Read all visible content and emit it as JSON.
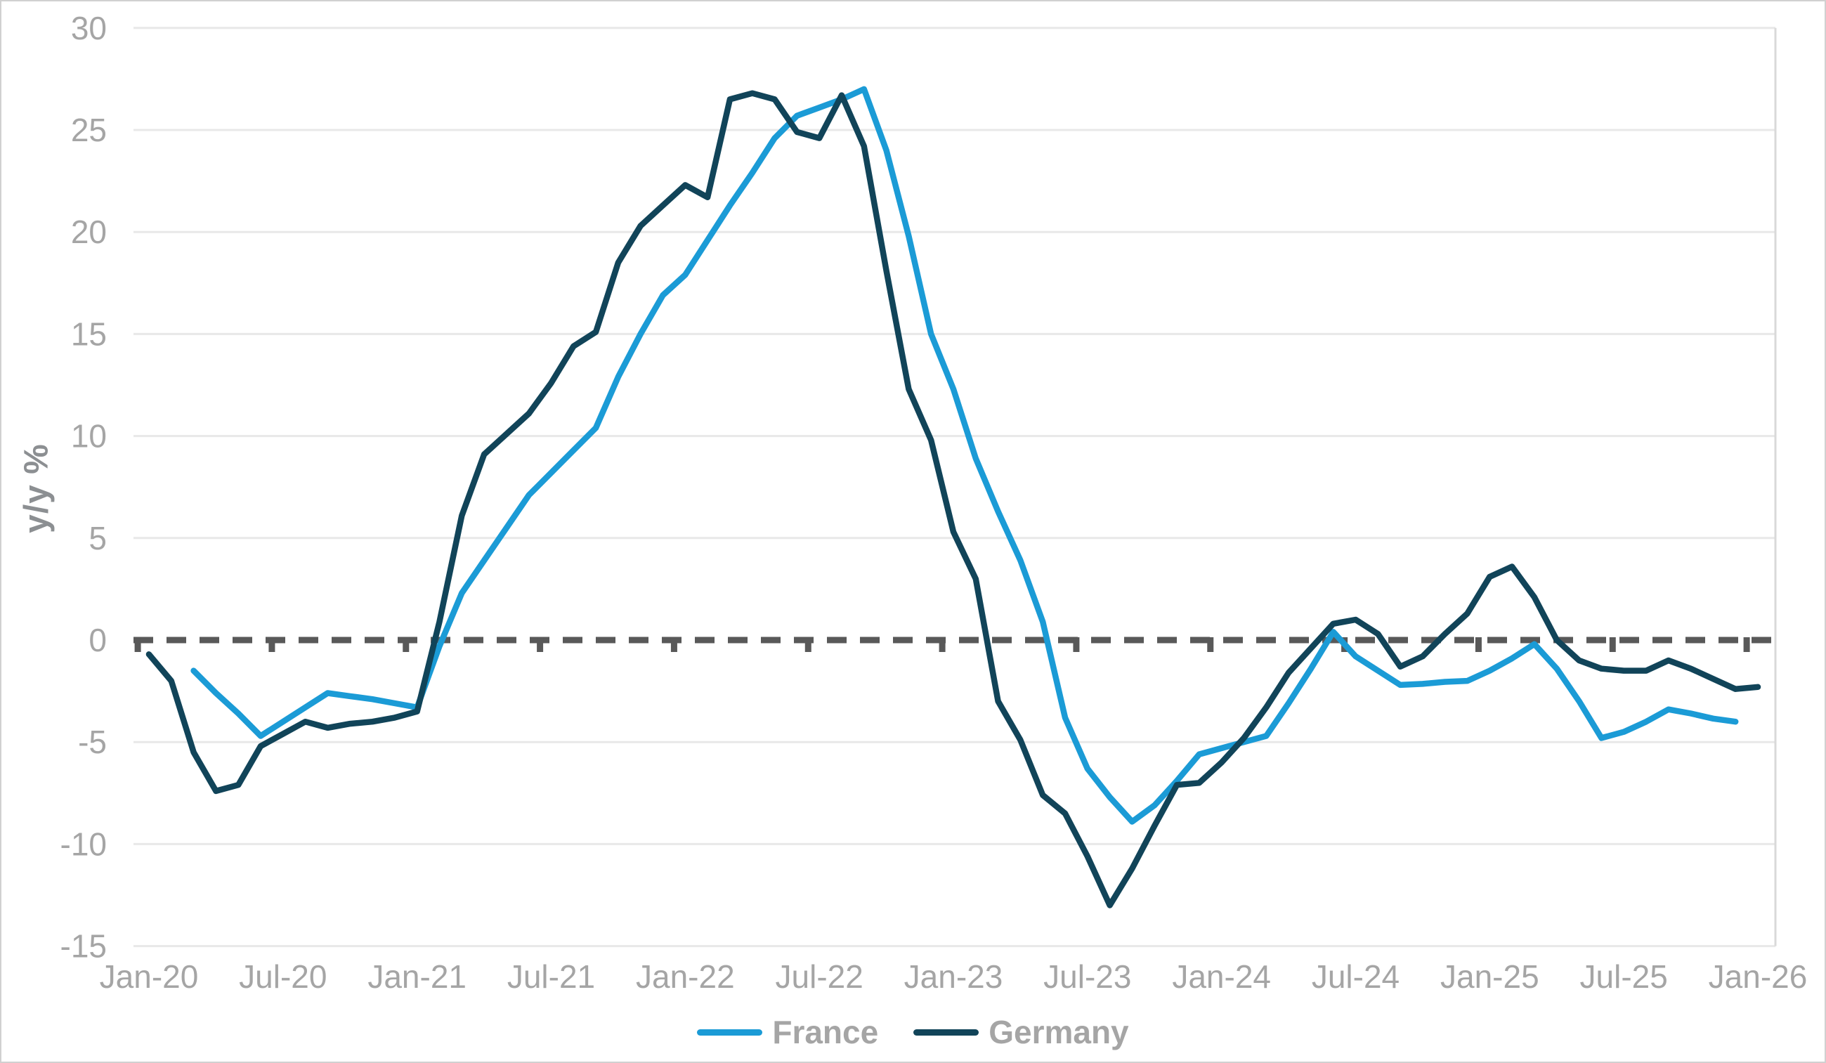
{
  "colors": {
    "background": "#FFFFFF",
    "image_border": "#D0D0D0",
    "plot_right_border": "#D9D9D9",
    "gridline": "#E8E8E8",
    "zero_line": "#595959",
    "tick_label": "#A5A5A5",
    "axis_title": "#8C8F92",
    "legend_label": "#A5A5A5",
    "france": "#1B9BD6",
    "germany": "#114459"
  },
  "chart_data": {
    "type": "line",
    "title": "",
    "xlabel": "",
    "ylabel": "y/y %",
    "ylim": [
      -15,
      30
    ],
    "y_ticks": [
      30,
      25,
      20,
      15,
      10,
      5,
      0,
      -5,
      -10,
      -15
    ],
    "x_tick_labels": [
      "Jan-20",
      "Jul-20",
      "Jan-21",
      "Jul-21",
      "Jan-22",
      "Jul-22",
      "Jan-23",
      "Jul-23",
      "Jan-24",
      "Jul-24",
      "Jan-25",
      "Jul-25",
      "Jan-26"
    ],
    "x_domain": [
      "Jan-20",
      "Jan-26"
    ],
    "x_frequency": "monthly",
    "grid": "horizontal",
    "legend_position": "bottom",
    "zero_reference_line": "dashed",
    "series": [
      {
        "name": "France",
        "color": "#1B9BD6",
        "first_month": "Mar-20",
        "last_month": "Dec-25",
        "start_month_index": 2,
        "values": [
          -1.5,
          -2.6,
          -3.6,
          -4.7,
          -4.0,
          -3.3,
          -2.6,
          -2.75,
          -2.9,
          -3.1,
          -3.3,
          -0.3,
          2.3,
          3.9,
          5.5,
          7.1,
          8.2,
          9.3,
          10.4,
          12.9,
          15.0,
          16.9,
          17.9,
          19.6,
          21.3,
          22.9,
          24.6,
          25.7,
          26.1,
          26.5,
          27.0,
          24.0,
          19.8,
          15.0,
          12.3,
          8.9,
          6.3,
          3.9,
          0.9,
          -3.8,
          -6.3,
          -7.7,
          -8.9,
          -8.1,
          -6.9,
          -5.6,
          -5.3,
          -5.0,
          -4.7,
          -3.1,
          -1.4,
          0.4,
          -0.8,
          -1.5,
          -2.2,
          -2.15,
          -2.05,
          -2.0,
          -1.5,
          -0.9,
          -0.2,
          -1.4,
          -3.0,
          -4.8,
          -4.5,
          -4.0,
          -3.4,
          -3.6,
          -3.85,
          -4.0
        ]
      },
      {
        "name": "Germany",
        "color": "#114459",
        "first_month": "Jan-20",
        "last_month": "Jan-26",
        "start_month_index": 0,
        "values": [
          -0.7,
          -2.0,
          -5.5,
          -7.4,
          -7.1,
          -5.2,
          -4.6,
          -4.0,
          -4.3,
          -4.1,
          -4.0,
          -3.8,
          -3.5,
          0.9,
          6.1,
          9.1,
          10.1,
          11.1,
          12.6,
          14.4,
          15.1,
          18.5,
          20.3,
          21.3,
          22.3,
          21.7,
          26.5,
          26.8,
          26.5,
          24.9,
          24.6,
          26.7,
          24.2,
          18.1,
          12.3,
          9.8,
          5.3,
          3.0,
          -3.0,
          -4.9,
          -7.6,
          -8.5,
          -10.6,
          -13.0,
          -11.2,
          -9.1,
          -7.1,
          -7.0,
          -6.0,
          -4.8,
          -3.3,
          -1.6,
          -0.4,
          0.8,
          1.0,
          0.3,
          -1.3,
          -0.8,
          0.3,
          1.3,
          3.1,
          3.6,
          2.1,
          0.0,
          -1.0,
          -1.4,
          -1.5,
          -1.5,
          -1.0,
          -1.4,
          -1.9,
          -2.4,
          -2.3
        ]
      }
    ]
  },
  "legend": {
    "items": [
      {
        "label": "France"
      },
      {
        "label": "Germany"
      }
    ]
  }
}
